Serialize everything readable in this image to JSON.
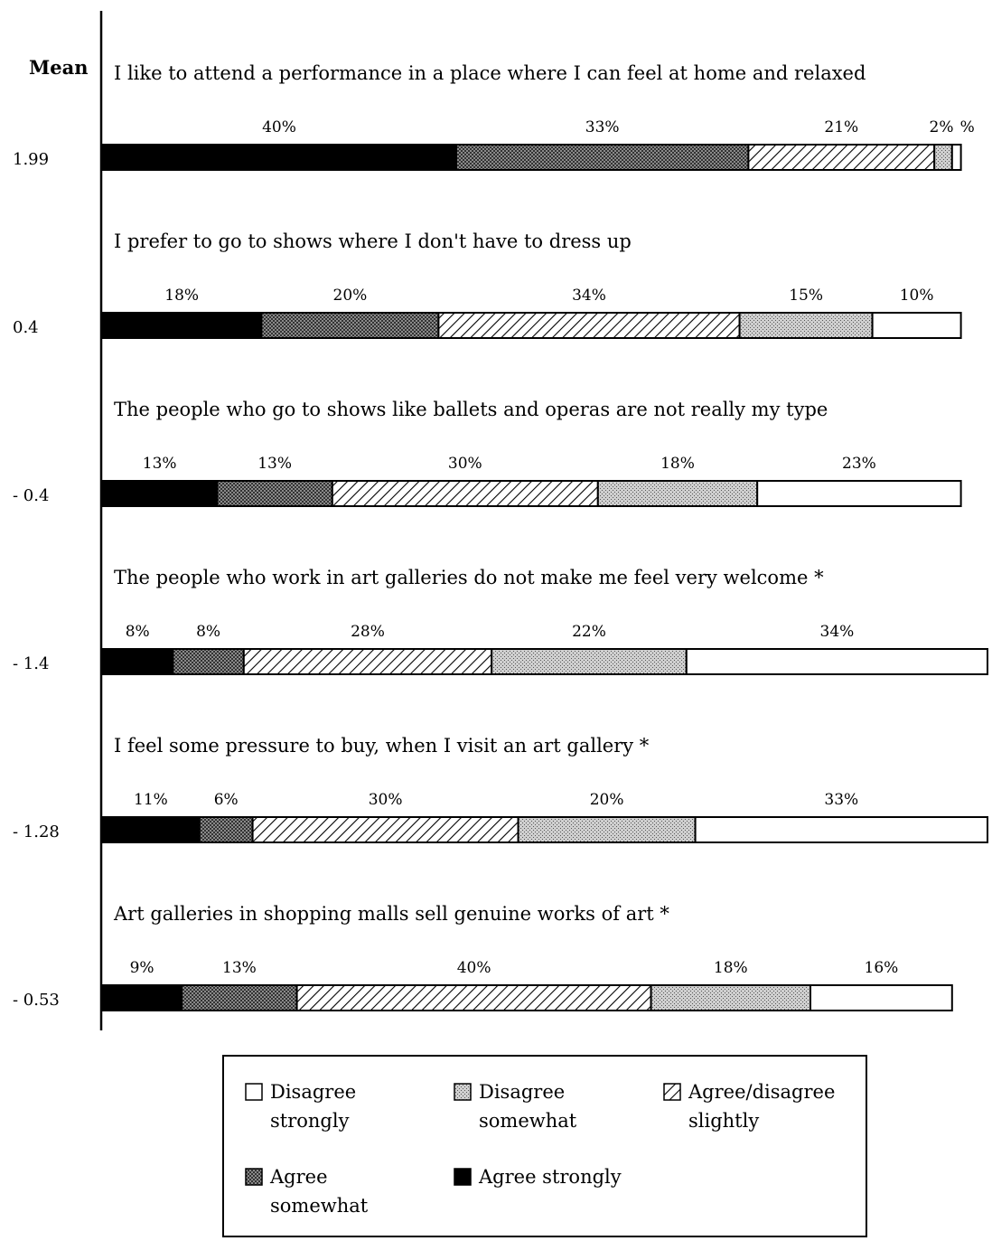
{
  "chart_data": {
    "type": "bar",
    "orientation": "horizontal",
    "stacked": true,
    "mean_header": "Mean",
    "rows": [
      {
        "statement": "I like to attend a performance in a place where I can feel at home and relaxed",
        "mean": "1.99",
        "values": [
          40,
          33,
          21,
          2,
          1
        ],
        "labels": [
          "40%",
          "33%",
          "21%",
          "2%",
          "%"
        ]
      },
      {
        "statement": "I prefer to go to shows where I don't have to dress up",
        "mean": "0.4",
        "values": [
          18,
          20,
          34,
          15,
          10
        ],
        "labels": [
          "18%",
          "20%",
          "34%",
          "15%",
          "10%"
        ]
      },
      {
        "statement": "The people who go to shows like ballets and operas are not really my type",
        "mean": "- 0.4",
        "values": [
          13,
          13,
          30,
          18,
          23
        ],
        "labels": [
          "13%",
          "13%",
          "30%",
          "18%",
          "23%"
        ]
      },
      {
        "statement": "The people who work in art galleries do not make me feel very welcome *",
        "mean": "- 1.4",
        "values": [
          8,
          8,
          28,
          22,
          34
        ],
        "labels": [
          "8%",
          "8%",
          "28%",
          "22%",
          "34%"
        ]
      },
      {
        "statement": "I feel some pressure to buy, when I visit an art gallery *",
        "mean": "- 1.28",
        "values": [
          11,
          6,
          30,
          20,
          33
        ],
        "labels": [
          "11%",
          "6%",
          "30%",
          "20%",
          "33%"
        ]
      },
      {
        "statement": "Art galleries in shopping malls sell genuine works of art *",
        "mean": "- 0.53",
        "values": [
          9,
          13,
          40,
          18,
          16
        ],
        "labels": [
          "9%",
          "13%",
          "40%",
          "18%",
          "16%"
        ]
      }
    ],
    "segment_order": [
      "Agree strongly",
      "Agree somewhat",
      "Agree/disagree slightly",
      "Disagree somewhat",
      "Disagree strongly"
    ],
    "legend": [
      {
        "key": "disagree_strongly",
        "lines": [
          "Disagree",
          "strongly"
        ]
      },
      {
        "key": "disagree_somewhat",
        "lines": [
          "Disagree",
          "somewhat"
        ]
      },
      {
        "key": "slightly",
        "lines": [
          "Agree/disagree",
          "slightly"
        ]
      },
      {
        "key": "agree_somewhat",
        "lines": [
          "Agree",
          "somewhat"
        ]
      },
      {
        "key": "agree_strongly",
        "lines": [
          "Agree strongly"
        ]
      }
    ],
    "legend_placement": "bottom",
    "colors": {
      "agree_strongly": "#000000",
      "agree_somewhat": "#2a2a2a",
      "slightly_stripe": "#000000",
      "disagree_somewhat": "#9a9a9a",
      "disagree_strongly": "#ffffff"
    }
  }
}
